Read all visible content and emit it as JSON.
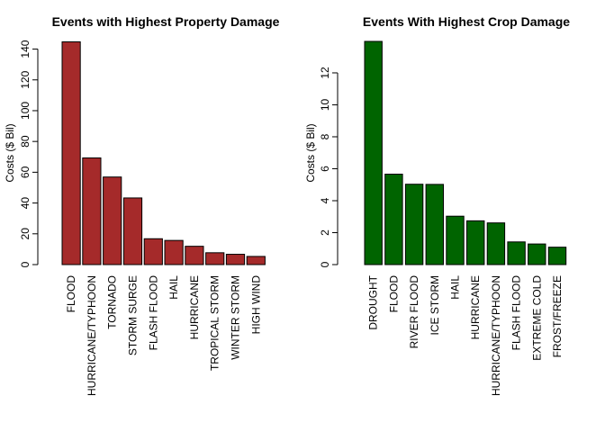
{
  "chart_data": [
    {
      "type": "bar",
      "title": "Events with Highest Property Damage",
      "xlabel": "",
      "ylabel": "Costs ($ Bil)",
      "ylim": [
        0,
        145
      ],
      "yticks": [
        0,
        20,
        40,
        60,
        80,
        100,
        120,
        140
      ],
      "grid": false,
      "bar_color": "#A52A2A",
      "categories": [
        "FLOOD",
        "HURRICANE/TYPHOON",
        "TORNADO",
        "STORM SURGE",
        "FLASH FLOOD",
        "HAIL",
        "HURRICANE",
        "TROPICAL STORM",
        "WINTER STORM",
        "HIGH WIND"
      ],
      "values": [
        144.7,
        69.3,
        56.9,
        43.3,
        16.8,
        15.7,
        11.9,
        7.7,
        6.7,
        5.3
      ]
    },
    {
      "type": "bar",
      "title": "Events With Highest Crop Damage",
      "xlabel": "",
      "ylabel": "Costs ($ Bil)",
      "ylim": [
        0,
        13.97
      ],
      "yticks": [
        0,
        2,
        4,
        6,
        8,
        10,
        12
      ],
      "grid": false,
      "bar_color": "#006400",
      "categories": [
        "DROUGHT",
        "FLOOD",
        "RIVER FLOOD",
        "ICE STORM",
        "HAIL",
        "HURRICANE",
        "HURRICANE/TYPHOON",
        "FLASH FLOOD",
        "EXTREME COLD",
        "FROST/FREEZE"
      ],
      "values": [
        13.97,
        5.66,
        5.03,
        5.02,
        3.03,
        2.74,
        2.61,
        1.42,
        1.29,
        1.09
      ]
    }
  ]
}
